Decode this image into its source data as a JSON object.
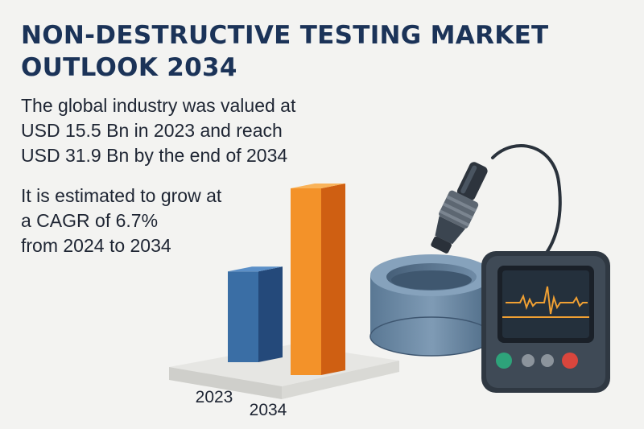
{
  "heading": {
    "line1": "NON-DESTRUCTIVE TESTING MARKET",
    "line2": "OUTLOOK 2034"
  },
  "summary": {
    "line1": "The global industry was valued at",
    "line2": "USD 15.5 Bn in 2023 and reach",
    "line3": "USD 31.9 Bn by the end of 2034"
  },
  "growth": {
    "line1": "It is estimated to grow at",
    "line2": "a CAGR of 6.7%",
    "line3": "from 2024 to 2034"
  },
  "colors": {
    "title": "#1b3358",
    "bar_2023": "#3a6ea5",
    "bar_2034": "#f39229",
    "device_body": "#3f4a56",
    "screen_wave": "#f0a033"
  },
  "chart_data": {
    "type": "bar",
    "categories": [
      "2023",
      "2034"
    ],
    "values": [
      15.5,
      31.9
    ],
    "ylim": [
      0,
      31.9
    ],
    "title": "",
    "xlabel": "",
    "ylabel": "",
    "grid": false,
    "legend": "none"
  },
  "illustration": {
    "icons": [
      "ultrasonic-probe-icon",
      "pipe-sample-icon",
      "flaw-detector-icon"
    ],
    "device_buttons": [
      "green",
      "gray",
      "gray",
      "red"
    ]
  }
}
